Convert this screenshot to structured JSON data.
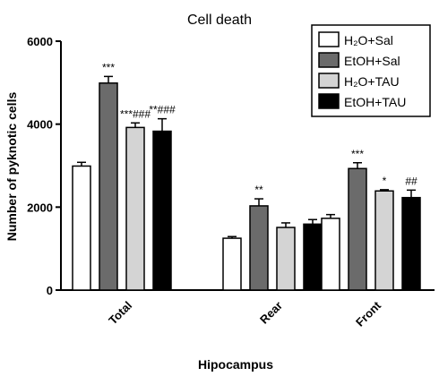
{
  "chart_data": {
    "type": "bar",
    "title": "Cell death",
    "xlabel": "Hipocampus",
    "ylabel": "Number of pyknotic cells",
    "ylim": [
      0,
      6000
    ],
    "yticks": [
      "0",
      "2000",
      "4000",
      "6000"
    ],
    "categories": [
      "Total",
      "Rear",
      "Front"
    ],
    "legend_position": "top-right",
    "series": [
      {
        "name": "H₂O+Sal",
        "color": "#ffffff",
        "values": [
          2990,
          1250,
          1730
        ],
        "errors": [
          90,
          40,
          90
        ]
      },
      {
        "name": "EtOH+Sal",
        "color": "#6b6b6b",
        "values": [
          4990,
          2030,
          2930
        ],
        "errors": [
          160,
          170,
          140
        ]
      },
      {
        "name": "H₂O+TAU",
        "color": "#d4d4d4",
        "values": [
          3920,
          1510,
          2390
        ],
        "errors": [
          110,
          110,
          30
        ]
      },
      {
        "name": "EtOH+TAU",
        "color": "#000000",
        "values": [
          3830,
          1590,
          2230
        ],
        "errors": [
          300,
          110,
          180
        ]
      }
    ],
    "annotations": [
      [
        "",
        "***",
        "***###",
        "**###"
      ],
      [
        "",
        "**",
        "",
        ""
      ],
      [
        "",
        "***",
        "*",
        "##"
      ]
    ]
  }
}
